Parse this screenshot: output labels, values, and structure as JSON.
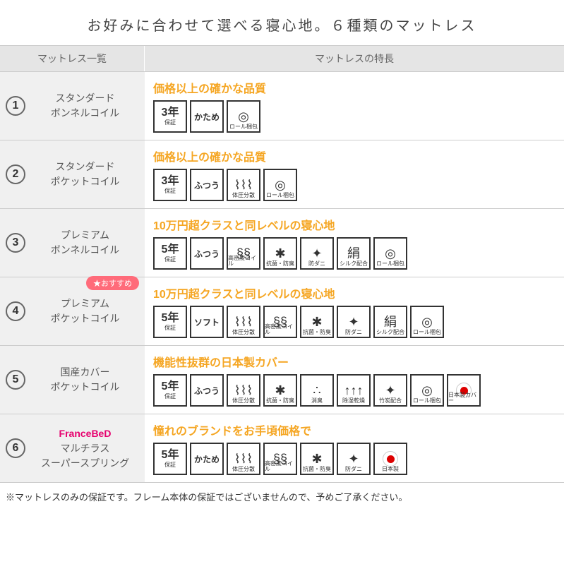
{
  "title": "お好みに合わせて選べる寝心地。６種類のマットレス",
  "header": {
    "left": "マットレス一覧",
    "right": "マットレスの特長"
  },
  "rows": [
    {
      "num": "1",
      "name_line1": "スタンダード",
      "name_line2": "ボンネルコイル",
      "headline": "価格以上の確かな品質",
      "badges": [
        {
          "type": "warranty",
          "years": "3年",
          "sub": "保証"
        },
        {
          "type": "firmness",
          "label": "かため"
        },
        {
          "type": "icon",
          "glyph": "◎",
          "caption": "ロール梱包"
        }
      ]
    },
    {
      "num": "2",
      "name_line1": "スタンダード",
      "name_line2": "ポケットコイル",
      "headline": "価格以上の確かな品質",
      "badges": [
        {
          "type": "warranty",
          "years": "3年",
          "sub": "保証"
        },
        {
          "type": "firmness",
          "label": "ふつう"
        },
        {
          "type": "icon",
          "glyph": "⌇⌇⌇",
          "caption": "体圧分散"
        },
        {
          "type": "icon",
          "glyph": "◎",
          "caption": "ロール梱包"
        }
      ]
    },
    {
      "num": "3",
      "name_line1": "プレミアム",
      "name_line2": "ボンネルコイル",
      "headline": "10万円超クラスと同レベルの寝心地",
      "badges": [
        {
          "type": "warranty",
          "years": "5年",
          "sub": "保証"
        },
        {
          "type": "firmness",
          "label": "ふつう"
        },
        {
          "type": "icon",
          "glyph": "§§",
          "caption": "高密度コイル"
        },
        {
          "type": "icon",
          "glyph": "✱",
          "caption": "抗菌・防臭"
        },
        {
          "type": "icon",
          "glyph": "✦",
          "caption": "防ダニ"
        },
        {
          "type": "icon",
          "glyph": "絹",
          "caption": "シルク配合"
        },
        {
          "type": "icon",
          "glyph": "◎",
          "caption": "ロール梱包"
        }
      ]
    },
    {
      "num": "4",
      "name_line1": "プレミアム",
      "name_line2": "ポケットコイル",
      "recommend": "★おすすめ",
      "headline": "10万円超クラスと同レベルの寝心地",
      "badges": [
        {
          "type": "warranty",
          "years": "5年",
          "sub": "保証"
        },
        {
          "type": "firmness",
          "label": "ソフト"
        },
        {
          "type": "icon",
          "glyph": "⌇⌇⌇",
          "caption": "体圧分散"
        },
        {
          "type": "icon",
          "glyph": "§§",
          "caption": "高密度コイル"
        },
        {
          "type": "icon",
          "glyph": "✱",
          "caption": "抗菌・防臭"
        },
        {
          "type": "icon",
          "glyph": "✦",
          "caption": "防ダニ"
        },
        {
          "type": "icon",
          "glyph": "絹",
          "caption": "シルク配合"
        },
        {
          "type": "icon",
          "glyph": "◎",
          "caption": "ロール梱包"
        }
      ]
    },
    {
      "num": "5",
      "name_line1": "国産カバー",
      "name_line2": "ポケットコイル",
      "headline": "機能性抜群の日本製カバー",
      "badges": [
        {
          "type": "warranty",
          "years": "5年",
          "sub": "保証"
        },
        {
          "type": "firmness",
          "label": "ふつう"
        },
        {
          "type": "icon",
          "glyph": "⌇⌇⌇",
          "caption": "体圧分散"
        },
        {
          "type": "icon",
          "glyph": "✱",
          "caption": "抗菌・防臭"
        },
        {
          "type": "icon",
          "glyph": "∴",
          "caption": "消臭"
        },
        {
          "type": "icon",
          "glyph": "↑↑↑",
          "caption": "除湿乾燥"
        },
        {
          "type": "icon",
          "glyph": "✦",
          "caption": "竹炭配合"
        },
        {
          "type": "icon",
          "glyph": "◎",
          "caption": "ロール梱包"
        },
        {
          "type": "jpflag",
          "caption": "日本製カバー"
        }
      ]
    },
    {
      "num": "6",
      "brand": "FranceBeD",
      "name_line1": "マルチラス",
      "name_line2": "スーパースプリング",
      "headline": "憧れのブランドをお手頃価格で",
      "badges": [
        {
          "type": "warranty",
          "years": "5年",
          "sub": "保証"
        },
        {
          "type": "firmness",
          "label": "かため"
        },
        {
          "type": "icon",
          "glyph": "⌇⌇⌇",
          "caption": "体圧分散"
        },
        {
          "type": "icon",
          "glyph": "§§",
          "caption": "高密度コイル"
        },
        {
          "type": "icon",
          "glyph": "✱",
          "caption": "抗菌・防臭"
        },
        {
          "type": "icon",
          "glyph": "✦",
          "caption": "防ダニ"
        },
        {
          "type": "jpflag",
          "caption": "日本製"
        }
      ]
    }
  ],
  "footnote": "※マットレスのみの保証です。フレーム本体の保証ではございませんので、予めご了承ください。",
  "colors": {
    "headline": "#f5a623",
    "recommend_bg": "#ff6b7a",
    "brand": "#e6006e",
    "cell_bg": "#f0f0f0",
    "header_bg": "#e5e5e5"
  }
}
